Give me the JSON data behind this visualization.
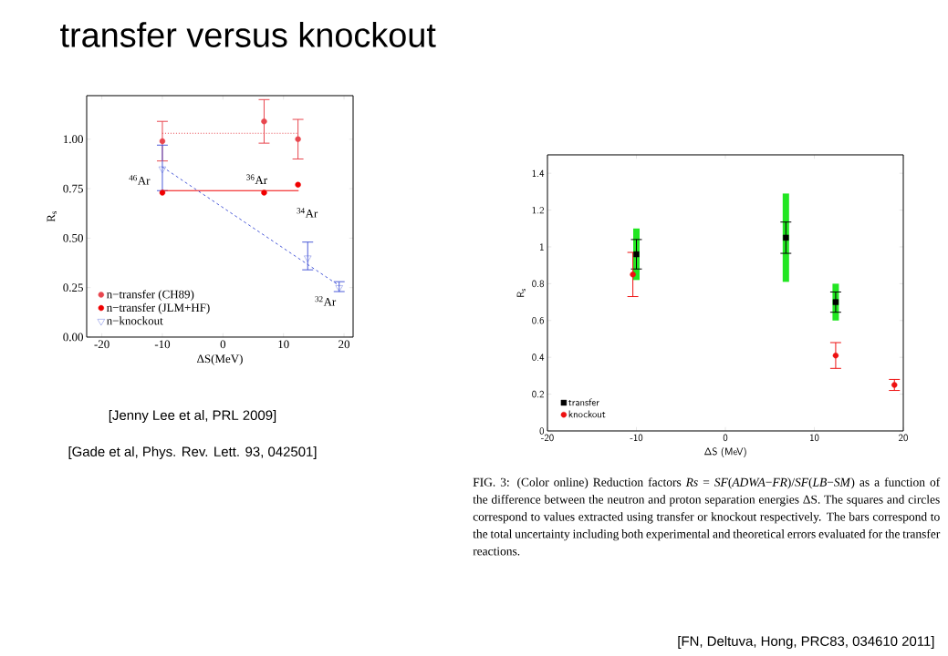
{
  "chart_data": [
    {
      "type": "scatter",
      "title": "transfer versus knockout",
      "xlabel": "ΔS(MeV)",
      "ylabel": "R$_{s}$",
      "xlim": [
        -22.5,
        21.5
      ],
      "xticks": [
        -20,
        -10,
        0,
        10,
        20
      ],
      "ylim": [
        0,
        1.22
      ],
      "yticks": [
        {
          "value": 0,
          "label": "0.00"
        },
        {
          "value": 0.25,
          "label": "0.25"
        },
        {
          "value": 0.5,
          "label": "0.50"
        },
        {
          "value": 0.75,
          "label": "0.75"
        },
        {
          "value": 1,
          "label": "1.00"
        }
      ],
      "legend": "bottom left",
      "series": [
        {
          "name": "n−transfer (CH89)",
          "color": "#e8464e",
          "marker": "circle",
          "x": [
            -10,
            6.8,
            12.4
          ],
          "values": [
            0.99,
            1.09,
            1.0
          ],
          "errors": [
            [
              0.89,
              1.09
            ],
            [
              0.98,
              1.2
            ],
            [
              0.9,
              1.1
            ]
          ]
        },
        {
          "name": "n−transfer (JLM+HF)",
          "color": "#f00000",
          "marker": "circle",
          "x": [
            -10,
            6.8,
            12.4
          ],
          "values": [
            0.73,
            0.73,
            0.77
          ]
        },
        {
          "name": "n−knockout",
          "color": "#4a5ad8",
          "marker": "triangle",
          "x": [
            -10,
            14,
            19.2
          ],
          "values": [
            0.85,
            0.4,
            0.25
          ],
          "errors": [
            [
              0.74,
              0.97
            ],
            [
              0.34,
              0.48
            ],
            [
              0.23,
              0.28
            ]
          ]
        },
        {
          "type": "line",
          "color": "#e8464e",
          "line_style": "dotted",
          "x": [
            -10,
            12.5
          ],
          "values": [
            1.03,
            1.03
          ]
        },
        {
          "type": "line",
          "color": "#f00000",
          "line_style": "solid",
          "x": [
            -10,
            12.5
          ],
          "values": [
            0.74,
            0.74
          ]
        },
        {
          "type": "line",
          "color": "#4a5ad8",
          "line_style": "dashed",
          "x": [
            -10,
            19.2
          ],
          "values": [
            0.86,
            0.26
          ]
        }
      ],
      "annotations": [
        {
          "text": "$^{46}$Ar",
          "x": -10,
          "y": 0.85
        },
        {
          "text": "$^{36}$Ar",
          "x": 6.8,
          "y": 0.73
        },
        {
          "text": "$^{34}$Ar",
          "x": 12.4,
          "y": 0.77
        },
        {
          "text": "$^{32}$Ar",
          "x": 19.2,
          "y": 0.25
        },
        "[Jenny Lee et al, PRL 2009]",
        "[Gade et al, Phys. Rev. Lett. 93, 042501]"
      ]
    },
    {
      "type": "scatter",
      "xlabel": "ΔS (MeV)",
      "ylabel": "R$_{s}$",
      "xlim": [
        -20,
        20
      ],
      "xticks": [
        -20,
        -10,
        0,
        10,
        20
      ],
      "ylim": [
        0,
        1.5
      ],
      "yticks": [
        0,
        0.2,
        0.4,
        0.6,
        0.8,
        1,
        1.2,
        1.4
      ],
      "legend": "bottom left",
      "series": [
        {
          "type": "bar",
          "color": "#22e622",
          "x": [
            -10,
            6.8,
            12.4
          ],
          "base": [
            0.82,
            0.81,
            0.6
          ],
          "values": [
            0.28,
            0.48,
            0.2
          ]
        },
        {
          "name": "transfer",
          "color": "#000000",
          "marker": "square",
          "x": [
            -10,
            6.8,
            12.4
          ],
          "values": [
            0.96,
            1.05,
            0.7
          ],
          "errors": [
            [
              0.88,
              1.04
            ],
            [
              0.965,
              1.135
            ],
            [
              0.645,
              0.755
            ]
          ]
        },
        {
          "name": "knockout",
          "color": "#ee1111",
          "marker": "circle",
          "x": [
            -10.4,
            12.4,
            19
          ],
          "values": [
            0.85,
            0.41,
            0.25
          ],
          "errors": [
            [
              0.73,
              0.97
            ],
            [
              0.34,
              0.48
            ],
            [
              0.22,
              0.28
            ]
          ]
        }
      ],
      "annotations": [
        "FIG. 3: (Color online) Reduction factors *Rs* = *SF*(*ADWA*−*FR*)/*SF*(*LB*−*SM*) as a function of the difference between the neutron and proton separation energies ΔS. The squares and circles correspond to values extracted using transfer or knockout respectively. The bars correspond to the total uncertainty including both experimental and theoretical errors evaluated for the transfer reactions.",
        "[FN, Deltuva, Hong, PRC83, 034610 2011]"
      ]
    }
  ]
}
